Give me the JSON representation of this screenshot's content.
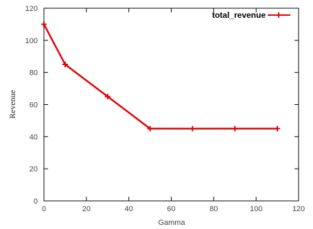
{
  "chart_data": {
    "type": "line",
    "title": "",
    "xlabel": "Gamma",
    "ylabel": "Revenue",
    "xlim": [
      0,
      120
    ],
    "ylim": [
      0,
      120
    ],
    "xticks": [
      0,
      20,
      40,
      60,
      80,
      100,
      120
    ],
    "yticks": [
      0,
      20,
      40,
      60,
      80,
      100,
      120
    ],
    "grid": false,
    "legend_position": "top-right",
    "series": [
      {
        "name": "total_revenue",
        "color": "#e00000",
        "marker": "plus",
        "x": [
          0,
          10,
          30,
          50,
          70,
          90,
          110
        ],
        "y": [
          110,
          85,
          65,
          45,
          45,
          45,
          45
        ]
      }
    ]
  }
}
